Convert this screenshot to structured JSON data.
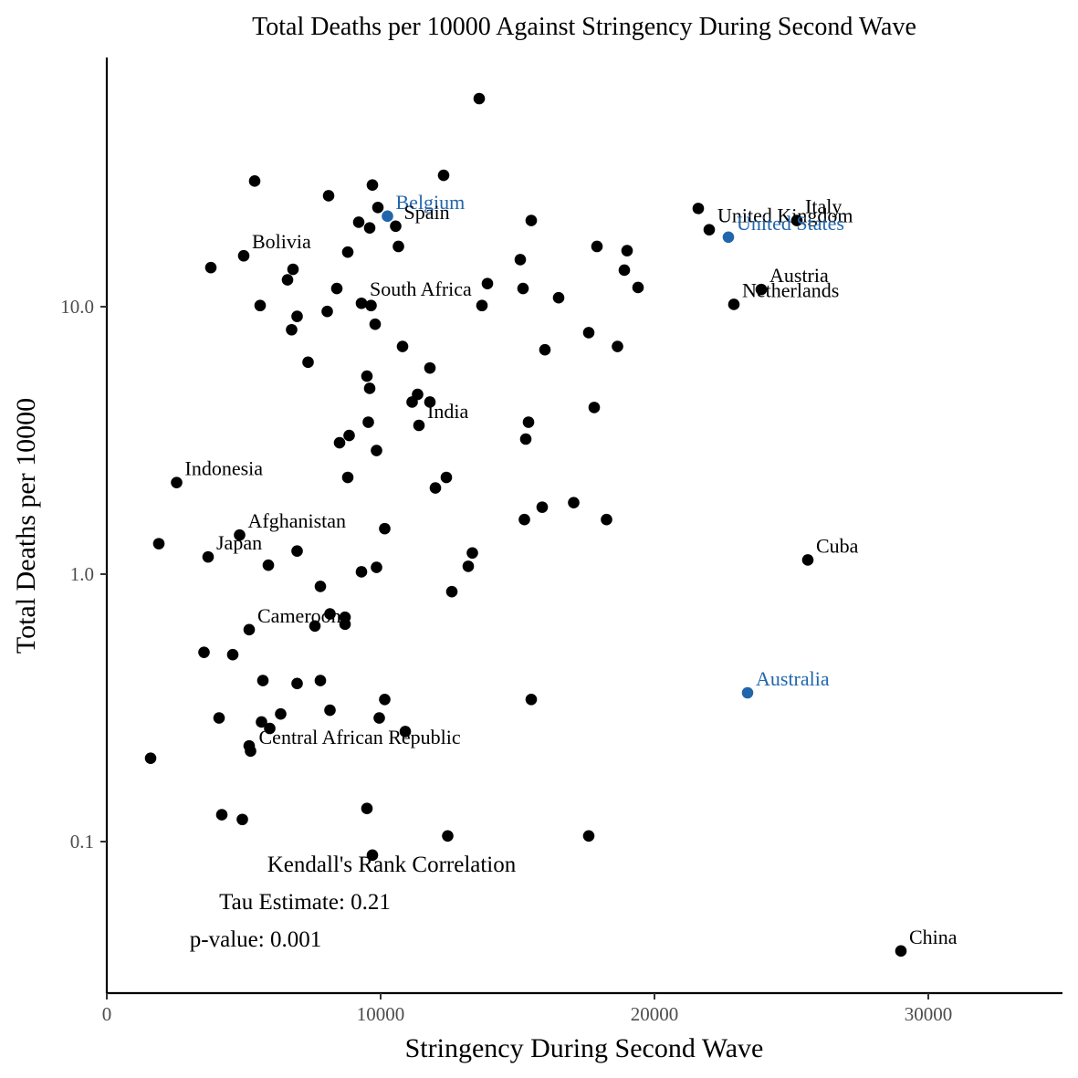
{
  "chart_data": {
    "type": "scatter",
    "title": "Total Deaths per 10000 Against Stringency During Second Wave",
    "xlabel": "Stringency During Second Wave",
    "ylabel": "Total Deaths per 10000",
    "xlim": [
      0,
      35000
    ],
    "ylim": [
      0.037,
      80
    ],
    "yscale": "log10",
    "xticks": [
      0,
      10000,
      20000,
      30000
    ],
    "xtick_labels": [
      "0",
      "10000",
      "20000",
      "30000"
    ],
    "yticks": [
      0.1,
      1.0,
      10.0
    ],
    "ytick_labels": [
      "0.1",
      "1.0",
      "10.0"
    ],
    "grid": false,
    "legend": "none",
    "colors": {
      "default": "#000000",
      "highlight": "#2166ac"
    },
    "points": [
      {
        "x": 13600,
        "y": 60.0
      },
      {
        "x": 12300,
        "y": 31.0
      },
      {
        "x": 5400,
        "y": 29.5
      },
      {
        "x": 9700,
        "y": 28.5
      },
      {
        "x": 8100,
        "y": 26.0
      },
      {
        "x": 9900,
        "y": 23.5
      },
      {
        "x": 10250,
        "y": 21.8,
        "label": "Belgium",
        "highlight": true
      },
      {
        "x": 9200,
        "y": 20.7
      },
      {
        "x": 9600,
        "y": 19.7
      },
      {
        "x": 10550,
        "y": 20.0,
        "label": "Spain"
      },
      {
        "x": 15500,
        "y": 21.0
      },
      {
        "x": 21600,
        "y": 23.3
      },
      {
        "x": 25200,
        "y": 21.0,
        "label": "Italy"
      },
      {
        "x": 22000,
        "y": 19.4,
        "label": "United Kingdom"
      },
      {
        "x": 22700,
        "y": 18.2,
        "label": "United States",
        "highlight": true
      },
      {
        "x": 10650,
        "y": 16.8
      },
      {
        "x": 8800,
        "y": 16.0
      },
      {
        "x": 17900,
        "y": 16.8
      },
      {
        "x": 19000,
        "y": 16.2
      },
      {
        "x": 15100,
        "y": 15.0
      },
      {
        "x": 5000,
        "y": 15.5,
        "label": "Bolivia"
      },
      {
        "x": 3800,
        "y": 14.0
      },
      {
        "x": 6800,
        "y": 13.8
      },
      {
        "x": 18900,
        "y": 13.7
      },
      {
        "x": 6600,
        "y": 12.6
      },
      {
        "x": 13900,
        "y": 12.2
      },
      {
        "x": 8400,
        "y": 11.7
      },
      {
        "x": 15200,
        "y": 11.7
      },
      {
        "x": 19400,
        "y": 11.8
      },
      {
        "x": 23900,
        "y": 11.6,
        "label": "Austria"
      },
      {
        "x": 16500,
        "y": 10.8
      },
      {
        "x": 9300,
        "y": 10.3,
        "label": "South Africa"
      },
      {
        "x": 5600,
        "y": 10.1
      },
      {
        "x": 9650,
        "y": 10.1
      },
      {
        "x": 13700,
        "y": 10.1
      },
      {
        "x": 22900,
        "y": 10.2,
        "label": "Netherlands"
      },
      {
        "x": 8050,
        "y": 9.6
      },
      {
        "x": 6950,
        "y": 9.2
      },
      {
        "x": 9800,
        "y": 8.6
      },
      {
        "x": 6750,
        "y": 8.2
      },
      {
        "x": 17600,
        "y": 8.0
      },
      {
        "x": 10800,
        "y": 7.1
      },
      {
        "x": 16000,
        "y": 6.9
      },
      {
        "x": 18650,
        "y": 7.1
      },
      {
        "x": 7350,
        "y": 6.2
      },
      {
        "x": 11800,
        "y": 5.9
      },
      {
        "x": 9500,
        "y": 5.5
      },
      {
        "x": 9600,
        "y": 4.95
      },
      {
        "x": 11350,
        "y": 4.7
      },
      {
        "x": 11150,
        "y": 4.4
      },
      {
        "x": 11800,
        "y": 4.4
      },
      {
        "x": 17800,
        "y": 4.2
      },
      {
        "x": 9550,
        "y": 3.7
      },
      {
        "x": 11400,
        "y": 3.6,
        "label": "India"
      },
      {
        "x": 15400,
        "y": 3.7
      },
      {
        "x": 8850,
        "y": 3.3
      },
      {
        "x": 8500,
        "y": 3.1
      },
      {
        "x": 15300,
        "y": 3.2
      },
      {
        "x": 9850,
        "y": 2.9
      },
      {
        "x": 2550,
        "y": 2.2,
        "label": "Indonesia"
      },
      {
        "x": 8800,
        "y": 2.3
      },
      {
        "x": 12400,
        "y": 2.3
      },
      {
        "x": 12000,
        "y": 2.1
      },
      {
        "x": 17050,
        "y": 1.85
      },
      {
        "x": 15900,
        "y": 1.78
      },
      {
        "x": 15250,
        "y": 1.6
      },
      {
        "x": 18250,
        "y": 1.6
      },
      {
        "x": 10150,
        "y": 1.48
      },
      {
        "x": 4850,
        "y": 1.4,
        "label": "Afghanistan"
      },
      {
        "x": 1900,
        "y": 1.3
      },
      {
        "x": 6950,
        "y": 1.22
      },
      {
        "x": 13350,
        "y": 1.2
      },
      {
        "x": 3700,
        "y": 1.16,
        "label": "Japan"
      },
      {
        "x": 5900,
        "y": 1.08
      },
      {
        "x": 9850,
        "y": 1.06
      },
      {
        "x": 13200,
        "y": 1.07
      },
      {
        "x": 9300,
        "y": 1.02
      },
      {
        "x": 25600,
        "y": 1.13,
        "label": "Cuba"
      },
      {
        "x": 7800,
        "y": 0.9
      },
      {
        "x": 12600,
        "y": 0.86
      },
      {
        "x": 8150,
        "y": 0.71
      },
      {
        "x": 8700,
        "y": 0.69
      },
      {
        "x": 7600,
        "y": 0.64
      },
      {
        "x": 8700,
        "y": 0.65
      },
      {
        "x": 5200,
        "y": 0.62,
        "label": "Cameroon"
      },
      {
        "x": 3550,
        "y": 0.51
      },
      {
        "x": 4600,
        "y": 0.5
      },
      {
        "x": 5700,
        "y": 0.4
      },
      {
        "x": 6950,
        "y": 0.39
      },
      {
        "x": 7800,
        "y": 0.4
      },
      {
        "x": 23400,
        "y": 0.36,
        "label": "Australia",
        "highlight": true
      },
      {
        "x": 10150,
        "y": 0.34
      },
      {
        "x": 15500,
        "y": 0.34
      },
      {
        "x": 8150,
        "y": 0.31
      },
      {
        "x": 4100,
        "y": 0.29
      },
      {
        "x": 6350,
        "y": 0.3
      },
      {
        "x": 9950,
        "y": 0.29
      },
      {
        "x": 5650,
        "y": 0.28
      },
      {
        "x": 5950,
        "y": 0.265
      },
      {
        "x": 10900,
        "y": 0.258
      },
      {
        "x": 5200,
        "y": 0.228
      },
      {
        "x": 5250,
        "y": 0.218,
        "label": "Central African Republic"
      },
      {
        "x": 1600,
        "y": 0.205
      },
      {
        "x": 9500,
        "y": 0.133
      },
      {
        "x": 4200,
        "y": 0.126
      },
      {
        "x": 4950,
        "y": 0.121
      },
      {
        "x": 12450,
        "y": 0.105
      },
      {
        "x": 17600,
        "y": 0.105
      },
      {
        "x": 9700,
        "y": 0.089
      },
      {
        "x": 29000,
        "y": 0.039,
        "label": "China"
      }
    ],
    "annotations": [
      "Kendall's Rank Correlation",
      "Tau Estimate: 0.21",
      "p-value: 0.001"
    ]
  }
}
